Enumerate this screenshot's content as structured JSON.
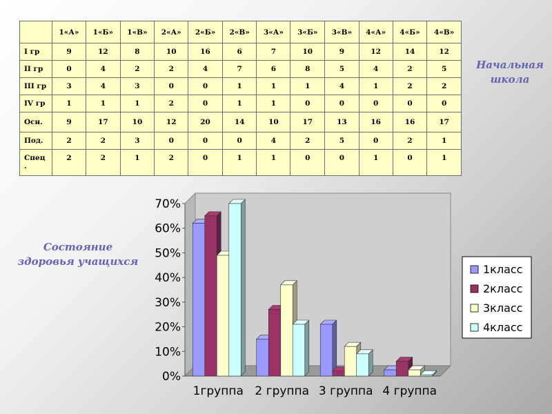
{
  "table": {
    "headers": [
      "1«А»",
      "1«Б»",
      "1«В»",
      "2«А»",
      "2«Б»",
      "2«В»",
      "3«А»",
      "3«Б»",
      "3«В»",
      "4«А»",
      "4«Б»",
      "4«В»"
    ],
    "rows": [
      {
        "label": "I гр",
        "values": [
          "9",
          "12",
          "8",
          "10",
          "16",
          "6",
          "7",
          "10",
          "9",
          "12",
          "14",
          "12"
        ]
      },
      {
        "label": "II гр",
        "values": [
          "0",
          "4",
          "2",
          "2",
          "4",
          "7",
          "6",
          "8",
          "5",
          "4",
          "2",
          "5"
        ]
      },
      {
        "label": "III гр",
        "values": [
          "3",
          "4",
          "3",
          "0",
          "0",
          "1",
          "1",
          "1",
          "4",
          "1",
          "2",
          "2"
        ]
      },
      {
        "label": "IV гр",
        "values": [
          "1",
          "1",
          "1",
          "2",
          "0",
          "1",
          "1",
          "0",
          "0",
          "0",
          "0",
          "0"
        ]
      },
      {
        "label": "Осн.",
        "values": [
          "9",
          "17",
          "10",
          "12",
          "20",
          "14",
          "10",
          "17",
          "13",
          "16",
          "16",
          "17"
        ]
      },
      {
        "label": "Под.",
        "values": [
          "2",
          "2",
          "3",
          "0",
          "0",
          "0",
          "4",
          "2",
          "5",
          "0",
          "2",
          "1"
        ]
      },
      {
        "label": "Спец\n.",
        "values": [
          "2",
          "2",
          "1",
          "2",
          "0",
          "1",
          "1",
          "0",
          "0",
          "1",
          "0",
          "1"
        ]
      }
    ]
  },
  "captions": {
    "school": "Начальная школа",
    "health": "Состояние\nздоровья учащихся"
  },
  "chart_data": {
    "type": "bar",
    "categories": [
      "1группа",
      "2 группа",
      "3 группа",
      "4 группа"
    ],
    "series": [
      {
        "name": "1класс",
        "color": "#9999ff",
        "values": [
          62,
          15,
          21,
          2.5
        ]
      },
      {
        "name": "2класс",
        "color": "#993366",
        "values": [
          65,
          27,
          2,
          6
        ]
      },
      {
        "name": "3класс",
        "color": "#ffffcc",
        "values": [
          49,
          37,
          12,
          2.5
        ]
      },
      {
        "name": "4класс",
        "color": "#ccffff",
        "values": [
          70,
          21,
          9,
          0.5
        ]
      }
    ],
    "y_ticks": [
      "0%",
      "10%",
      "20%",
      "30%",
      "40%",
      "50%",
      "60%",
      "70%"
    ],
    "ylim": [
      0,
      70
    ],
    "grid": false,
    "legend_position": "right"
  }
}
